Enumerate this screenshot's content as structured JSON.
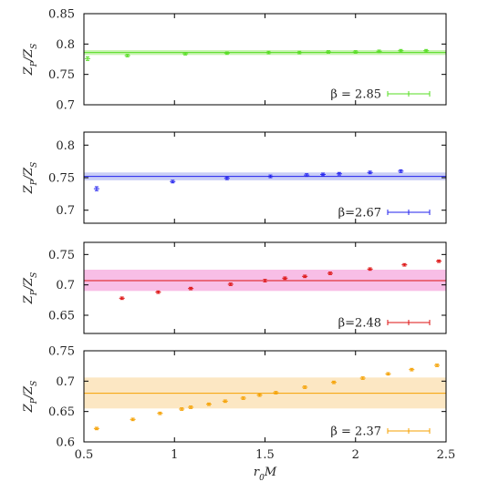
{
  "x_axis": {
    "label": "r₀M",
    "lim": [
      0.5,
      2.5
    ],
    "ticks": [
      "0.5",
      "1",
      "1.5",
      "2",
      "2.5"
    ],
    "tick_values": [
      0.5,
      1,
      1.5,
      2,
      2.5
    ]
  },
  "chart_data": [
    {
      "type": "scatter",
      "ylabel": "Z_P/Z_S",
      "ylim": [
        0.7,
        0.85
      ],
      "yticks": [
        "0.7",
        "0.75",
        "0.8",
        "0.85"
      ],
      "ytick_values": [
        0.7,
        0.75,
        0.8,
        0.85
      ],
      "color": "#55dd22",
      "band_color": "#bff0a6",
      "band": {
        "center": 0.786,
        "lower": 0.782,
        "upper": 0.79
      },
      "legend": "β = 2.85",
      "legend_position": "bottom-right",
      "points": [
        {
          "x": 0.52,
          "y": 0.776,
          "err": 0.003
        },
        {
          "x": 0.74,
          "y": 0.781,
          "err": 0.002
        },
        {
          "x": 1.06,
          "y": 0.784,
          "err": 0.002
        },
        {
          "x": 1.29,
          "y": 0.785,
          "err": 0.002
        },
        {
          "x": 1.52,
          "y": 0.786,
          "err": 0.002
        },
        {
          "x": 1.69,
          "y": 0.786,
          "err": 0.002
        },
        {
          "x": 1.85,
          "y": 0.787,
          "err": 0.002
        },
        {
          "x": 2.0,
          "y": 0.787,
          "err": 0.002
        },
        {
          "x": 2.13,
          "y": 0.788,
          "err": 0.002
        },
        {
          "x": 2.25,
          "y": 0.789,
          "err": 0.002
        },
        {
          "x": 2.39,
          "y": 0.789,
          "err": 0.002
        }
      ]
    },
    {
      "type": "scatter",
      "ylabel": "Z_P/Z_S",
      "ylim": [
        0.68,
        0.82
      ],
      "yticks": [
        "0.7",
        "0.75",
        "0.8"
      ],
      "ytick_values": [
        0.7,
        0.75,
        0.8
      ],
      "color": "#2222ee",
      "band_color": "#bfc6f5",
      "band": {
        "center": 0.752,
        "lower": 0.746,
        "upper": 0.758
      },
      "legend": "β=2.67",
      "legend_position": "bottom-right",
      "points": [
        {
          "x": 0.57,
          "y": 0.733,
          "err": 0.003
        },
        {
          "x": 0.99,
          "y": 0.744,
          "err": 0.002
        },
        {
          "x": 1.29,
          "y": 0.749,
          "err": 0.002
        },
        {
          "x": 1.53,
          "y": 0.752,
          "err": 0.002
        },
        {
          "x": 1.73,
          "y": 0.754,
          "err": 0.002
        },
        {
          "x": 1.82,
          "y": 0.755,
          "err": 0.002
        },
        {
          "x": 1.91,
          "y": 0.756,
          "err": 0.002
        },
        {
          "x": 2.08,
          "y": 0.758,
          "err": 0.002
        },
        {
          "x": 2.25,
          "y": 0.76,
          "err": 0.002
        }
      ]
    },
    {
      "type": "scatter",
      "ylabel": "Z_P/Z_S",
      "ylim": [
        0.62,
        0.77
      ],
      "yticks": [
        "0.65",
        "0.7",
        "0.75"
      ],
      "ytick_values": [
        0.65,
        0.7,
        0.75
      ],
      "color": "#dd1111",
      "band_color": "#f7b3e2",
      "band": {
        "center": 0.707,
        "lower": 0.69,
        "upper": 0.725
      },
      "legend": "β=2.48",
      "legend_position": "bottom-right",
      "points": [
        {
          "x": 0.71,
          "y": 0.678,
          "err": 0.002
        },
        {
          "x": 0.91,
          "y": 0.688,
          "err": 0.002
        },
        {
          "x": 1.09,
          "y": 0.694,
          "err": 0.002
        },
        {
          "x": 1.31,
          "y": 0.701,
          "err": 0.002
        },
        {
          "x": 1.5,
          "y": 0.707,
          "err": 0.002
        },
        {
          "x": 1.61,
          "y": 0.711,
          "err": 0.002
        },
        {
          "x": 1.72,
          "y": 0.714,
          "err": 0.002
        },
        {
          "x": 1.86,
          "y": 0.719,
          "err": 0.002
        },
        {
          "x": 2.08,
          "y": 0.726,
          "err": 0.002
        },
        {
          "x": 2.27,
          "y": 0.733,
          "err": 0.002
        },
        {
          "x": 2.46,
          "y": 0.739,
          "err": 0.002
        }
      ]
    },
    {
      "type": "scatter",
      "ylabel": "Z_P/Z_S",
      "ylim": [
        0.6,
        0.75
      ],
      "yticks": [
        "0.6",
        "0.65",
        "0.7",
        "0.75"
      ],
      "ytick_values": [
        0.6,
        0.65,
        0.7,
        0.75
      ],
      "color": "#f5a000",
      "band_color": "#fbe3b8",
      "band": {
        "center": 0.68,
        "lower": 0.655,
        "upper": 0.706
      },
      "legend": "β = 2.37",
      "legend_position": "bottom-right",
      "points": [
        {
          "x": 0.57,
          "y": 0.622,
          "err": 0.002
        },
        {
          "x": 0.77,
          "y": 0.637,
          "err": 0.002
        },
        {
          "x": 0.92,
          "y": 0.647,
          "err": 0.002
        },
        {
          "x": 1.04,
          "y": 0.654,
          "err": 0.002
        },
        {
          "x": 1.09,
          "y": 0.657,
          "err": 0.002
        },
        {
          "x": 1.19,
          "y": 0.662,
          "err": 0.002
        },
        {
          "x": 1.28,
          "y": 0.667,
          "err": 0.002
        },
        {
          "x": 1.38,
          "y": 0.672,
          "err": 0.002
        },
        {
          "x": 1.47,
          "y": 0.677,
          "err": 0.002
        },
        {
          "x": 1.56,
          "y": 0.681,
          "err": 0.002
        },
        {
          "x": 1.72,
          "y": 0.69,
          "err": 0.002
        },
        {
          "x": 1.88,
          "y": 0.698,
          "err": 0.002
        },
        {
          "x": 2.04,
          "y": 0.705,
          "err": 0.002
        },
        {
          "x": 2.18,
          "y": 0.712,
          "err": 0.002
        },
        {
          "x": 2.31,
          "y": 0.719,
          "err": 0.002
        },
        {
          "x": 2.45,
          "y": 0.726,
          "err": 0.002
        }
      ]
    }
  ]
}
